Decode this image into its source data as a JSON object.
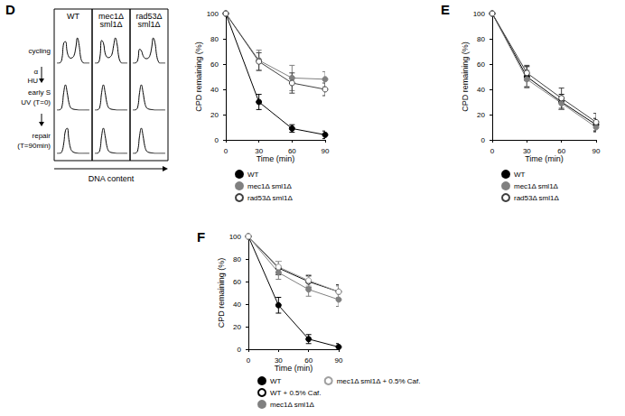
{
  "chart_data": [
    {
      "type": "histogram_grid",
      "panel": "D",
      "columns": [
        "WT",
        "mec1Δ sml1Δ",
        "rad53Δ sml1Δ"
      ],
      "rows": [
        {
          "label": [
            "cycling"
          ],
          "profiles": [
            [
              0,
              0,
              0.02,
              0.2,
              0.8,
              0.85,
              0.45,
              0.25,
              0.2,
              0.22,
              0.3,
              0.6,
              1,
              0.7,
              0.2,
              0.04,
              0,
              0,
              0,
              0
            ],
            [
              0,
              0,
              0.02,
              0.25,
              0.9,
              0.8,
              0.4,
              0.25,
              0.22,
              0.25,
              0.35,
              0.7,
              1,
              0.75,
              0.25,
              0.05,
              0,
              0,
              0,
              0
            ],
            [
              0,
              0,
              0.02,
              0.15,
              0.55,
              0.5,
              0.3,
              0.2,
              0.18,
              0.2,
              0.3,
              0.6,
              1,
              0.8,
              0.3,
              0.06,
              0,
              0,
              0,
              0
            ]
          ]
        },
        {
          "label": [
            "early S",
            "UV (T=0)"
          ],
          "profiles": [
            [
              0,
              0,
              0.02,
              0.15,
              0.7,
              1,
              0.7,
              0.3,
              0.1,
              0.05,
              0.03,
              0.02,
              0.01,
              0,
              0,
              0,
              0,
              0,
              0,
              0
            ],
            [
              0,
              0,
              0.02,
              0.15,
              0.7,
              1,
              0.7,
              0.3,
              0.1,
              0.05,
              0.03,
              0.02,
              0.01,
              0,
              0,
              0,
              0,
              0,
              0,
              0
            ],
            [
              0,
              0,
              0.02,
              0.15,
              0.7,
              1,
              0.7,
              0.3,
              0.1,
              0.05,
              0.03,
              0.02,
              0.01,
              0,
              0,
              0,
              0,
              0,
              0,
              0
            ]
          ]
        },
        {
          "label": [
            "repair",
            "(T=90min)"
          ],
          "profiles": [
            [
              0,
              0,
              0.01,
              0.08,
              0.4,
              0.9,
              1,
              0.55,
              0.2,
              0.08,
              0.04,
              0.02,
              0.01,
              0,
              0,
              0,
              0,
              0,
              0,
              0
            ],
            [
              0,
              0,
              0.02,
              0.15,
              0.7,
              1,
              0.7,
              0.3,
              0.1,
              0.05,
              0.03,
              0.02,
              0.01,
              0,
              0,
              0,
              0,
              0,
              0,
              0
            ],
            [
              0,
              0,
              0.02,
              0.15,
              0.7,
              1,
              0.7,
              0.3,
              0.1,
              0.05,
              0.03,
              0.02,
              0.01,
              0,
              0,
              0,
              0,
              0,
              0,
              0
            ]
          ]
        }
      ],
      "steps": [
        [
          "α",
          "HU"
        ],
        []
      ],
      "xlabel": "DNA content",
      "ylim": [
        0,
        1
      ],
      "tick_labels": false
    },
    {
      "type": "line",
      "xlabel": "Time (min)",
      "ylabel": "CPD remaining (%)",
      "x": [
        0,
        30,
        60,
        90
      ],
      "xlim": [
        0,
        90
      ],
      "xticks": [
        0,
        30,
        60,
        90
      ],
      "ylim": [
        0,
        100
      ],
      "yticks": [
        0,
        20,
        40,
        60,
        80,
        100
      ],
      "grid": false,
      "series": [
        {
          "name": "WT",
          "color": "#000000",
          "marker": "filled_circle",
          "values": [
            100,
            30,
            9,
            4
          ],
          "errors": [
            0,
            6,
            3,
            3
          ]
        },
        {
          "name": "mec1Δ sml1Δ",
          "color": "#808080",
          "marker": "filled_circle",
          "values": [
            100,
            63,
            49,
            48
          ],
          "errors": [
            0,
            8,
            10,
            6
          ]
        },
        {
          "name": "rad53Δ sml1Δ",
          "color": "#404040",
          "marker": "open_circle",
          "values": [
            100,
            62,
            45,
            40
          ],
          "errors": [
            0,
            7,
            8,
            5
          ]
        }
      ]
    },
    {
      "type": "line",
      "panel": "E",
      "xlabel": "Time (min)",
      "ylabel": "CPD remaining (%)",
      "x": [
        0,
        30,
        60,
        90
      ],
      "xlim": [
        0,
        90
      ],
      "xticks": [
        0,
        30,
        60,
        90
      ],
      "ylim": [
        0,
        100
      ],
      "yticks": [
        0,
        20,
        40,
        60,
        80,
        100
      ],
      "grid": false,
      "series": [
        {
          "name": "WT",
          "color": "#000000",
          "marker": "filled_circle",
          "values": [
            100,
            50,
            30,
            12
          ],
          "errors": [
            0,
            8,
            6,
            5
          ]
        },
        {
          "name": "mec1Δ sml1Δ",
          "color": "#808080",
          "marker": "filled_circle",
          "values": [
            100,
            48,
            29,
            10
          ],
          "errors": [
            0,
            7,
            5,
            4
          ]
        },
        {
          "name": "rad53Δ sml1Δ",
          "color": "#404040",
          "marker": "open_circle",
          "values": [
            100,
            53,
            33,
            14
          ],
          "errors": [
            0,
            6,
            8,
            7
          ]
        }
      ]
    },
    {
      "type": "line",
      "panel": "F",
      "xlabel": "Time (min)",
      "ylabel": "CPD remaining (%)",
      "x": [
        0,
        30,
        60,
        90
      ],
      "xlim": [
        0,
        90
      ],
      "xticks": [
        0,
        30,
        60,
        90
      ],
      "ylim": [
        0,
        100
      ],
      "yticks": [
        0,
        20,
        40,
        60,
        80,
        100
      ],
      "grid": false,
      "series": [
        {
          "name": "WT",
          "color": "#000000",
          "marker": "filled_circle",
          "values": [
            100,
            39,
            9,
            2
          ],
          "errors": [
            0,
            7,
            4,
            3
          ]
        },
        {
          "name": "WT + 0.5% Caf.",
          "color": "#000000",
          "marker": "open_circle",
          "values": [
            100,
            72,
            60,
            51
          ],
          "errors": [
            0,
            6,
            5,
            6
          ]
        },
        {
          "name": "mec1Δ sml1Δ",
          "color": "#808080",
          "marker": "filled_circle",
          "values": [
            100,
            68,
            53,
            44
          ],
          "errors": [
            0,
            6,
            6,
            6
          ]
        },
        {
          "name": "mec1Δ sml1Δ + 0.5% Caf.",
          "color": "#a0a0a0",
          "marker": "open_circle",
          "values": [
            100,
            73,
            61,
            51
          ],
          "errors": [
            0,
            5,
            5,
            5
          ]
        }
      ]
    }
  ]
}
